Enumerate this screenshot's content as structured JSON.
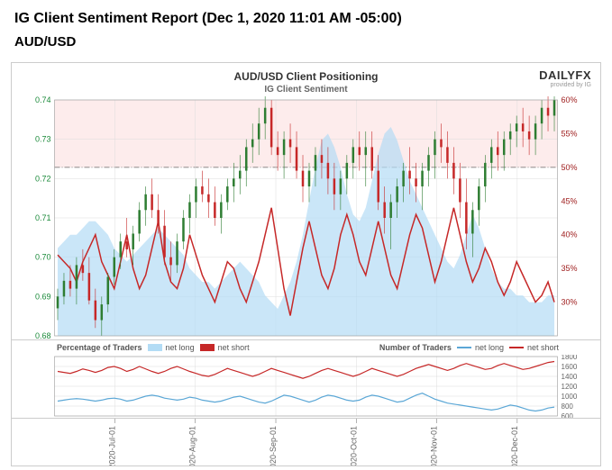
{
  "header": {
    "report_title": "IG Client Sentiment Report (Dec 1, 2020 11:01 AM -05:00)",
    "pair": "AUD/USD"
  },
  "logo": {
    "main": "DAILYFX",
    "sub": "provided by IG"
  },
  "chart_main": {
    "title": "AUD/USD Client Positioning",
    "subtitle": "IG Client Sentiment",
    "left_axis": {
      "min": 0.68,
      "max": 0.74,
      "ticks": [
        0.68,
        0.69,
        0.7,
        0.71,
        0.72,
        0.73,
        0.74
      ],
      "label_color": "#1b8a3a",
      "fontsize": 9
    },
    "right_axis": {
      "min": 25,
      "max": 60,
      "ticks": [
        30,
        35,
        40,
        45,
        50,
        55,
        60
      ],
      "label_suffix": "%",
      "label_color": "#a02020",
      "fontsize": 9,
      "midline": 50,
      "midline_style": "dash-dot",
      "midline_color": "#666666"
    },
    "background_upper_color": "#fdecec",
    "background_lower_color": "#ffffff",
    "grid_color": "#dddddd",
    "long_fill_color": "#b3dcf5",
    "long_fill_opacity": 0.7,
    "short_line_color": "#c62828",
    "short_line_width": 1.5,
    "candle_up_color": "#2e7d32",
    "candle_down_color": "#c62828",
    "candle_width": 2.5,
    "x_labels": [
      "2020-Jul-01",
      "2020-Aug-01",
      "2020-Sep-01",
      "2020-Oct-01",
      "2020-Nov-01",
      "2020-Dec-01"
    ],
    "x_positions_pct": [
      12,
      28,
      44,
      60,
      76,
      92
    ],
    "price_candles": [
      [
        0.687,
        0.692,
        0.684,
        0.69
      ],
      [
        0.69,
        0.696,
        0.688,
        0.694
      ],
      [
        0.694,
        0.698,
        0.69,
        0.692
      ],
      [
        0.692,
        0.7,
        0.688,
        0.698
      ],
      [
        0.698,
        0.702,
        0.694,
        0.696
      ],
      [
        0.696,
        0.7,
        0.688,
        0.689
      ],
      [
        0.689,
        0.692,
        0.682,
        0.684
      ],
      [
        0.684,
        0.69,
        0.68,
        0.688
      ],
      [
        0.688,
        0.696,
        0.686,
        0.695
      ],
      [
        0.695,
        0.702,
        0.693,
        0.7
      ],
      [
        0.7,
        0.706,
        0.697,
        0.704
      ],
      [
        0.704,
        0.71,
        0.7,
        0.702
      ],
      [
        0.702,
        0.708,
        0.698,
        0.706
      ],
      [
        0.706,
        0.714,
        0.704,
        0.712
      ],
      [
        0.712,
        0.718,
        0.708,
        0.716
      ],
      [
        0.716,
        0.72,
        0.71,
        0.712
      ],
      [
        0.712,
        0.716,
        0.706,
        0.708
      ],
      [
        0.708,
        0.712,
        0.698,
        0.7
      ],
      [
        0.7,
        0.704,
        0.694,
        0.698
      ],
      [
        0.698,
        0.706,
        0.696,
        0.704
      ],
      [
        0.704,
        0.712,
        0.702,
        0.71
      ],
      [
        0.71,
        0.716,
        0.706,
        0.714
      ],
      [
        0.714,
        0.72,
        0.71,
        0.718
      ],
      [
        0.718,
        0.722,
        0.714,
        0.716
      ],
      [
        0.716,
        0.72,
        0.71,
        0.714
      ],
      [
        0.714,
        0.718,
        0.708,
        0.71
      ],
      [
        0.71,
        0.716,
        0.706,
        0.714
      ],
      [
        0.714,
        0.72,
        0.712,
        0.718
      ],
      [
        0.718,
        0.724,
        0.714,
        0.72
      ],
      [
        0.72,
        0.726,
        0.716,
        0.722
      ],
      [
        0.722,
        0.73,
        0.718,
        0.728
      ],
      [
        0.728,
        0.734,
        0.724,
        0.73
      ],
      [
        0.73,
        0.738,
        0.726,
        0.734
      ],
      [
        0.734,
        0.742,
        0.73,
        0.738
      ],
      [
        0.738,
        0.74,
        0.726,
        0.728
      ],
      [
        0.728,
        0.732,
        0.722,
        0.726
      ],
      [
        0.726,
        0.732,
        0.72,
        0.73
      ],
      [
        0.73,
        0.734,
        0.724,
        0.728
      ],
      [
        0.728,
        0.732,
        0.72,
        0.722
      ],
      [
        0.722,
        0.726,
        0.714,
        0.718
      ],
      [
        0.718,
        0.724,
        0.714,
        0.722
      ],
      [
        0.722,
        0.728,
        0.718,
        0.726
      ],
      [
        0.726,
        0.73,
        0.72,
        0.724
      ],
      [
        0.724,
        0.728,
        0.716,
        0.72
      ],
      [
        0.72,
        0.724,
        0.712,
        0.716
      ],
      [
        0.716,
        0.722,
        0.712,
        0.72
      ],
      [
        0.72,
        0.726,
        0.716,
        0.724
      ],
      [
        0.724,
        0.73,
        0.72,
        0.728
      ],
      [
        0.728,
        0.732,
        0.722,
        0.726
      ],
      [
        0.726,
        0.732,
        0.718,
        0.728
      ],
      [
        0.728,
        0.732,
        0.72,
        0.722
      ],
      [
        0.722,
        0.726,
        0.712,
        0.714
      ],
      [
        0.714,
        0.718,
        0.706,
        0.71
      ],
      [
        0.71,
        0.716,
        0.702,
        0.714
      ],
      [
        0.714,
        0.72,
        0.71,
        0.718
      ],
      [
        0.718,
        0.724,
        0.714,
        0.722
      ],
      [
        0.722,
        0.728,
        0.716,
        0.72
      ],
      [
        0.72,
        0.724,
        0.714,
        0.718
      ],
      [
        0.718,
        0.724,
        0.712,
        0.722
      ],
      [
        0.722,
        0.728,
        0.718,
        0.726
      ],
      [
        0.726,
        0.732,
        0.72,
        0.73
      ],
      [
        0.73,
        0.734,
        0.724,
        0.728
      ],
      [
        0.728,
        0.732,
        0.72,
        0.724
      ],
      [
        0.724,
        0.728,
        0.716,
        0.72
      ],
      [
        0.72,
        0.724,
        0.71,
        0.714
      ],
      [
        0.714,
        0.72,
        0.702,
        0.706
      ],
      [
        0.706,
        0.714,
        0.7,
        0.712
      ],
      [
        0.712,
        0.72,
        0.708,
        0.718
      ],
      [
        0.718,
        0.726,
        0.714,
        0.724
      ],
      [
        0.724,
        0.73,
        0.72,
        0.728
      ],
      [
        0.728,
        0.732,
        0.722,
        0.726
      ],
      [
        0.726,
        0.732,
        0.722,
        0.73
      ],
      [
        0.73,
        0.734,
        0.726,
        0.732
      ],
      [
        0.732,
        0.736,
        0.728,
        0.734
      ],
      [
        0.734,
        0.738,
        0.728,
        0.732
      ],
      [
        0.732,
        0.736,
        0.726,
        0.73
      ],
      [
        0.73,
        0.736,
        0.726,
        0.734
      ],
      [
        0.734,
        0.74,
        0.73,
        0.738
      ],
      [
        0.738,
        0.742,
        0.732,
        0.736
      ],
      [
        0.736,
        0.742,
        0.732,
        0.74
      ]
    ],
    "long_pct": [
      38,
      39,
      40,
      40,
      41,
      42,
      42,
      41,
      40,
      38,
      37,
      36,
      37,
      38,
      39,
      40,
      41,
      40,
      39,
      38,
      37,
      35,
      34,
      33,
      33,
      32,
      33,
      34,
      35,
      36,
      35,
      34,
      33,
      31,
      30,
      29,
      31,
      33,
      36,
      40,
      45,
      50,
      54,
      55,
      53,
      50,
      46,
      43,
      42,
      44,
      48,
      52,
      55,
      56,
      54,
      51,
      48,
      46,
      44,
      42,
      40,
      38,
      36,
      35,
      37,
      40,
      43,
      41,
      38,
      35,
      33,
      32,
      32,
      31,
      31,
      30,
      30,
      30,
      31,
      31
    ],
    "short_pct": [
      37,
      36,
      35,
      33,
      36,
      38,
      40,
      36,
      34,
      32,
      36,
      40,
      35,
      32,
      34,
      38,
      42,
      36,
      33,
      32,
      35,
      40,
      37,
      34,
      32,
      30,
      33,
      36,
      35,
      32,
      30,
      33,
      36,
      40,
      44,
      38,
      32,
      28,
      33,
      38,
      42,
      38,
      34,
      32,
      35,
      40,
      43,
      40,
      36,
      34,
      38,
      42,
      38,
      34,
      32,
      36,
      40,
      43,
      41,
      37,
      33,
      36,
      40,
      44,
      40,
      36,
      33,
      35,
      38,
      36,
      33,
      31,
      33,
      36,
      34,
      32,
      30,
      31,
      33,
      30
    ]
  },
  "legend_trader": {
    "title": "Percentage of Traders",
    "items": [
      {
        "label": "net long",
        "color": "#b3dcf5"
      },
      {
        "label": "net short",
        "color": "#c62828"
      }
    ]
  },
  "legend_number": {
    "title": "Number of Traders",
    "items": [
      {
        "label": "net long",
        "color": "#5ba7d6"
      },
      {
        "label": "net short",
        "color": "#c62828"
      }
    ]
  },
  "chart_sub": {
    "right_axis": {
      "min": 600,
      "max": 1800,
      "ticks": [
        600,
        800,
        1000,
        1200,
        1400,
        1600,
        1800
      ],
      "label_color": "#666666",
      "fontsize": 8
    },
    "grid_color": "#dddddd",
    "long_line_color": "#5ba7d6",
    "short_line_color": "#c62828",
    "line_width": 1.2,
    "long_values": [
      900,
      920,
      940,
      950,
      940,
      920,
      900,
      920,
      950,
      960,
      940,
      900,
      920,
      960,
      1000,
      1020,
      1000,
      960,
      940,
      920,
      940,
      980,
      960,
      920,
      900,
      880,
      900,
      940,
      980,
      1000,
      960,
      920,
      880,
      860,
      900,
      960,
      1020,
      1000,
      960,
      920,
      880,
      920,
      980,
      1020,
      1000,
      960,
      920,
      900,
      920,
      980,
      1020,
      1000,
      960,
      920,
      880,
      900,
      960,
      1020,
      1060,
      1000,
      940,
      900,
      860,
      840,
      820,
      800,
      780,
      760,
      740,
      720,
      740,
      780,
      820,
      800,
      760,
      720,
      700,
      720,
      760,
      780
    ],
    "short_values": [
      1500,
      1480,
      1460,
      1500,
      1550,
      1520,
      1480,
      1520,
      1580,
      1600,
      1560,
      1500,
      1540,
      1600,
      1550,
      1500,
      1460,
      1500,
      1560,
      1600,
      1550,
      1500,
      1460,
      1420,
      1400,
      1440,
      1500,
      1560,
      1520,
      1480,
      1440,
      1400,
      1440,
      1500,
      1560,
      1520,
      1480,
      1440,
      1400,
      1360,
      1400,
      1460,
      1520,
      1560,
      1520,
      1480,
      1440,
      1400,
      1440,
      1500,
      1560,
      1520,
      1480,
      1440,
      1400,
      1440,
      1500,
      1560,
      1600,
      1640,
      1600,
      1560,
      1520,
      1560,
      1620,
      1660,
      1620,
      1580,
      1540,
      1560,
      1620,
      1660,
      1620,
      1580,
      1540,
      1560,
      1600,
      1640,
      1680,
      1700
    ]
  }
}
